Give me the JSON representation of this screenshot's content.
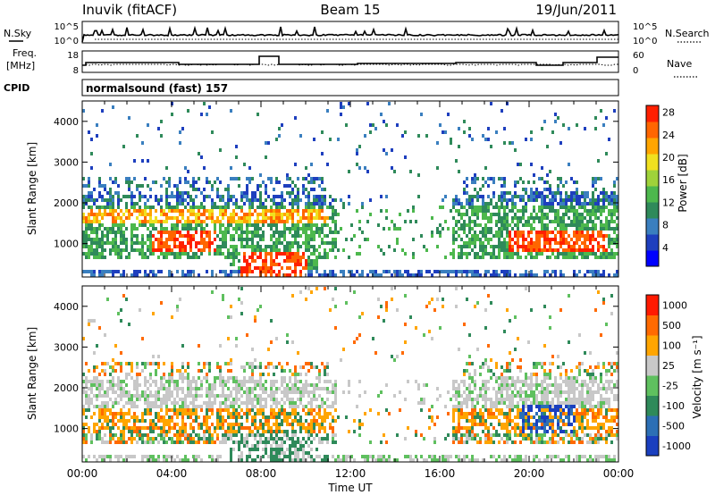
{
  "header": {
    "radar": "Inuvik (fitACF)",
    "beam": "Beam 15",
    "date": "19/Jun/2011"
  },
  "top_panels": {
    "nsky": {
      "label": "N.Sky",
      "tick_top": "10^5",
      "tick_bottom": "10^0",
      "right_tick_top": "10^5",
      "right_tick_bottom": "10^0",
      "right_label": "N.Search"
    },
    "freq": {
      "label_line1": "Freq.",
      "label_line2": "[MHz]",
      "tick_top": "18",
      "tick_bottom": "8",
      "right_tick_top": "60",
      "right_tick_bottom": "0",
      "right_label": "Nave"
    },
    "cpid": {
      "label": "CPID",
      "text": "normalsound (fast) 157"
    }
  },
  "chart_data": [
    {
      "type": "heatmap",
      "quantity": "power",
      "ylabel": "Slant Range [km]",
      "xlabel": "",
      "yticks": [
        1000,
        2000,
        3000,
        4000
      ],
      "ylim": [
        180,
        4500
      ],
      "xlim_hours": [
        0,
        24
      ],
      "colorbar": {
        "label": "Power [dB]",
        "ticks": [
          "4",
          "8",
          "12",
          "16",
          "20",
          "24",
          "28"
        ],
        "colors": [
          "#0000ff",
          "#1e3fbe",
          "#3a7fbf",
          "#2f8a5a",
          "#4db84d",
          "#9fd23a",
          "#f0e020",
          "#ffa500",
          "#ff6600",
          "#ff2000"
        ]
      }
    },
    {
      "type": "heatmap",
      "quantity": "velocity",
      "ylabel": "Slant Range [km]",
      "xlabel": "Time UT",
      "yticks": [
        1000,
        2000,
        3000,
        4000
      ],
      "ylim": [
        180,
        4500
      ],
      "xlim_hours": [
        0,
        24
      ],
      "xticks": [
        "00:00",
        "04:00",
        "08:00",
        "12:00",
        "16:00",
        "20:00",
        "00:00"
      ],
      "colorbar": {
        "label": "Velocity [m s⁻¹]",
        "ticks": [
          "1000",
          "500",
          "100",
          "25",
          "-25",
          "-100",
          "-500",
          "-1000"
        ],
        "colors": [
          "#1a3fbf",
          "#2c6fb5",
          "#2f8a5a",
          "#5fc05f",
          "#c8c8c8",
          "#ffa500",
          "#ff6a00",
          "#ff1a00"
        ]
      }
    }
  ]
}
